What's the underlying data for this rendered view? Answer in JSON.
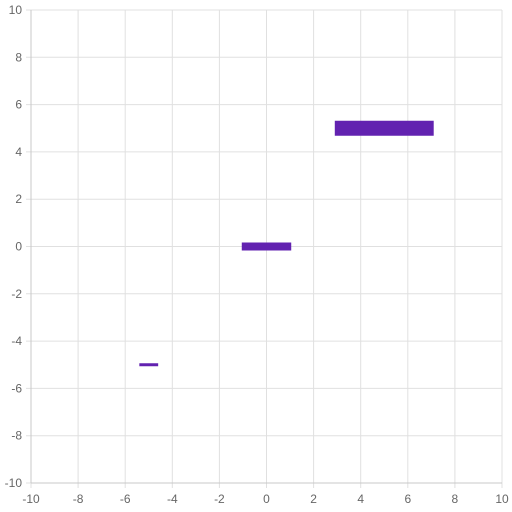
{
  "chart_data": {
    "type": "scatter",
    "marker": "horizontal-bar",
    "xlim": [
      -10,
      10
    ],
    "ylim": [
      -10,
      10
    ],
    "x_ticks": [
      -10,
      -8,
      -6,
      -4,
      -2,
      0,
      2,
      4,
      6,
      8,
      10
    ],
    "y_ticks": [
      10,
      8,
      6,
      4,
      2,
      0,
      -2,
      -4,
      -6,
      -8,
      -10
    ],
    "grid": true,
    "legend": "none",
    "color": "#6222b0",
    "points": [
      {
        "x": -5,
        "y": -5,
        "size": 0.8
      },
      {
        "x": 0,
        "y": 0,
        "size": 2.1
      },
      {
        "x": 5,
        "y": 5,
        "size": 4.2
      }
    ]
  }
}
